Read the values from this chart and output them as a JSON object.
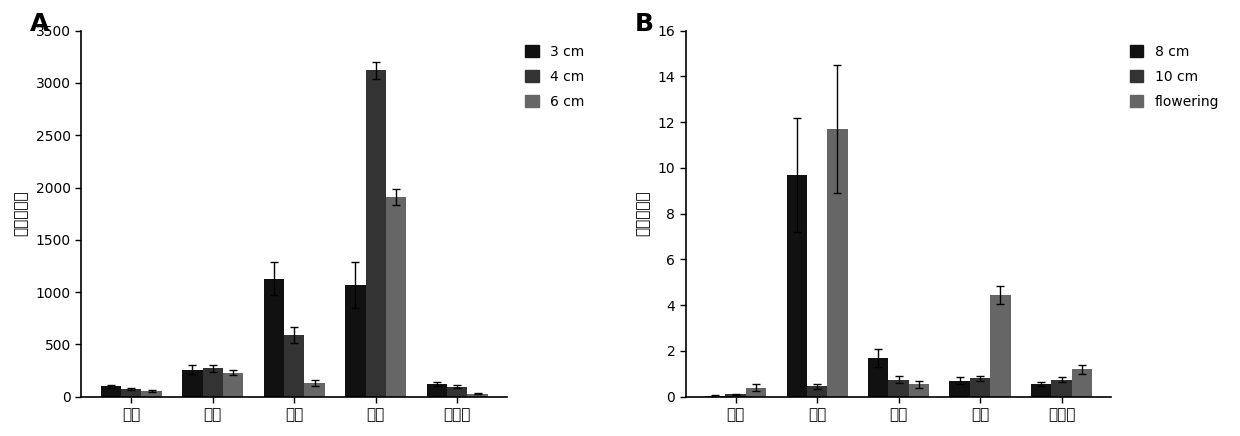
{
  "panel_A": {
    "categories": [
      "雄蕊",
      "雌蕊",
      "外释",
      "内释",
      "花序轴"
    ],
    "series": [
      "3 cm",
      "4 cm",
      "6 cm"
    ],
    "values": [
      [
        100,
        260,
        1130,
        1070,
        120
      ],
      [
        75,
        270,
        590,
        3120,
        95
      ],
      [
        55,
        230,
        130,
        1910,
        30
      ]
    ],
    "errors": [
      [
        15,
        40,
        160,
        220,
        20
      ],
      [
        10,
        30,
        80,
        80,
        15
      ],
      [
        8,
        25,
        30,
        80,
        8
      ]
    ],
    "ylabel": "相对表达量",
    "ylim": [
      0,
      3500
    ],
    "yticks": [
      0,
      500,
      1000,
      1500,
      2000,
      2500,
      3000,
      3500
    ],
    "label": "A"
  },
  "panel_B": {
    "categories": [
      "雄蕊",
      "雌蕊",
      "外释",
      "内释",
      "花序轴"
    ],
    "series": [
      "8 cm",
      "10 cm",
      "flowering"
    ],
    "values": [
      [
        0.05,
        9.7,
        1.7,
        0.7,
        0.55
      ],
      [
        0.1,
        0.45,
        0.75,
        0.8,
        0.75
      ],
      [
        0.4,
        11.7,
        0.55,
        4.45,
        1.2
      ]
    ],
    "errors": [
      [
        0.02,
        2.5,
        0.4,
        0.15,
        0.1
      ],
      [
        0.02,
        0.1,
        0.15,
        0.1,
        0.1
      ],
      [
        0.15,
        2.8,
        0.15,
        0.4,
        0.2
      ]
    ],
    "ylabel": "相对表达量",
    "ylim": [
      0,
      16
    ],
    "yticks": [
      0,
      2,
      4,
      6,
      8,
      10,
      12,
      14,
      16
    ],
    "label": "B"
  },
  "bar_color": "#1a1a1a",
  "bar_colors": [
    "#111111",
    "#444444",
    "#777777"
  ],
  "bar_width": 0.25,
  "figsize": [
    12.4,
    4.36
  ],
  "dpi": 100
}
